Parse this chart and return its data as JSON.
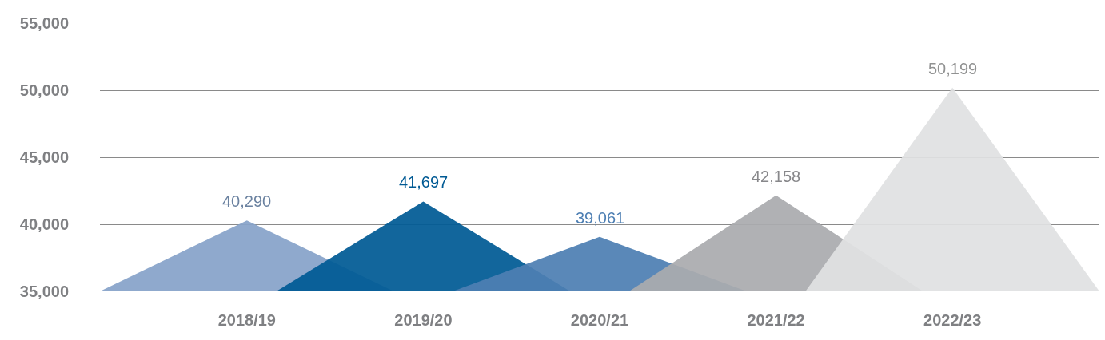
{
  "chart_data": {
    "type": "area",
    "categories": [
      null,
      null,
      null,
      null,
      null,
      "2018/19",
      null,
      null,
      null,
      null,
      null,
      "2019/20",
      null,
      null,
      null,
      null,
      null,
      "2020/21",
      null,
      null,
      null,
      null,
      null,
      "2021/22",
      null,
      null,
      null,
      null,
      null,
      "2022/23",
      null,
      null,
      null,
      null,
      null
    ],
    "series": [
      {
        "color": "#86a3c9",
        "values": [
          35000,
          null,
          null,
          null,
          null,
          40290,
          null,
          null,
          null,
          null,
          35000,
          null,
          null,
          null,
          null,
          null,
          null,
          null,
          null,
          null,
          null,
          null,
          null,
          null,
          null,
          null,
          null,
          null,
          null,
          null,
          null,
          null,
          null,
          null,
          null
        ],
        "value_labels": [
          null,
          null,
          null,
          null,
          null,
          "40,290",
          null,
          null,
          null,
          null,
          null,
          null,
          null,
          null,
          null,
          null,
          null,
          null,
          null,
          null,
          null,
          null,
          null,
          null,
          null,
          null,
          null,
          null,
          null,
          null,
          null,
          null,
          null,
          null,
          null
        ]
      },
      {
        "color": "#005a94",
        "values": [
          null,
          null,
          null,
          null,
          null,
          null,
          35000,
          null,
          null,
          null,
          null,
          41697,
          null,
          null,
          null,
          null,
          35000,
          null,
          null,
          null,
          null,
          null,
          null,
          null,
          null,
          null,
          null,
          null,
          null,
          null,
          null,
          null,
          null,
          null,
          null
        ],
        "value_labels": [
          null,
          null,
          null,
          null,
          null,
          null,
          null,
          null,
          null,
          null,
          null,
          "41,697",
          null,
          null,
          null,
          null,
          null,
          null,
          null,
          null,
          null,
          null,
          null,
          null,
          null,
          null,
          null,
          null,
          null,
          null,
          null,
          null,
          null,
          null,
          null
        ]
      },
      {
        "color": "#4e7fb3",
        "values": [
          null,
          null,
          null,
          null,
          null,
          null,
          null,
          null,
          null,
          null,
          null,
          null,
          35000,
          null,
          null,
          null,
          null,
          39061,
          null,
          null,
          null,
          null,
          35000,
          null,
          null,
          null,
          null,
          null,
          null,
          null,
          null,
          null,
          null,
          null,
          null
        ],
        "value_labels": [
          null,
          null,
          null,
          null,
          null,
          null,
          null,
          null,
          null,
          null,
          null,
          null,
          null,
          null,
          null,
          null,
          null,
          "39,061",
          null,
          null,
          null,
          null,
          null,
          null,
          null,
          null,
          null,
          null,
          null,
          null,
          null,
          null,
          null,
          null,
          null
        ]
      },
      {
        "color": "#aaabae",
        "values": [
          null,
          null,
          null,
          null,
          null,
          null,
          null,
          null,
          null,
          null,
          null,
          null,
          null,
          null,
          null,
          null,
          null,
          null,
          35000,
          null,
          null,
          null,
          null,
          42158,
          null,
          null,
          null,
          null,
          35000,
          null,
          null,
          null,
          null,
          null,
          null
        ],
        "value_labels": [
          null,
          null,
          null,
          null,
          null,
          null,
          null,
          null,
          null,
          null,
          null,
          null,
          null,
          null,
          null,
          null,
          null,
          null,
          null,
          null,
          null,
          null,
          null,
          "42,158",
          null,
          null,
          null,
          null,
          null,
          null,
          null,
          null,
          null,
          null,
          null
        ]
      },
      {
        "color": "#e0e1e2",
        "values": [
          null,
          null,
          null,
          null,
          null,
          null,
          null,
          null,
          null,
          null,
          null,
          null,
          null,
          null,
          null,
          null,
          null,
          null,
          null,
          null,
          null,
          null,
          null,
          null,
          35000,
          null,
          null,
          null,
          null,
          50199,
          null,
          null,
          null,
          null,
          35000
        ],
        "value_labels": [
          null,
          null,
          null,
          null,
          null,
          null,
          null,
          null,
          null,
          null,
          null,
          null,
          null,
          null,
          null,
          null,
          null,
          null,
          null,
          null,
          null,
          null,
          null,
          null,
          null,
          null,
          null,
          null,
          null,
          "50,199",
          null,
          null,
          null,
          null,
          null
        ]
      }
    ],
    "ylim": [
      35000,
      55000
    ],
    "yticks": [
      {
        "value": 35000,
        "label": "35,000"
      },
      {
        "value": 40000,
        "label": "40,000"
      },
      {
        "value": 45000,
        "label": "45,000"
      },
      {
        "value": 50000,
        "label": "50,000"
      },
      {
        "value": 55000,
        "label": "55,000"
      }
    ],
    "grid": "y"
  }
}
